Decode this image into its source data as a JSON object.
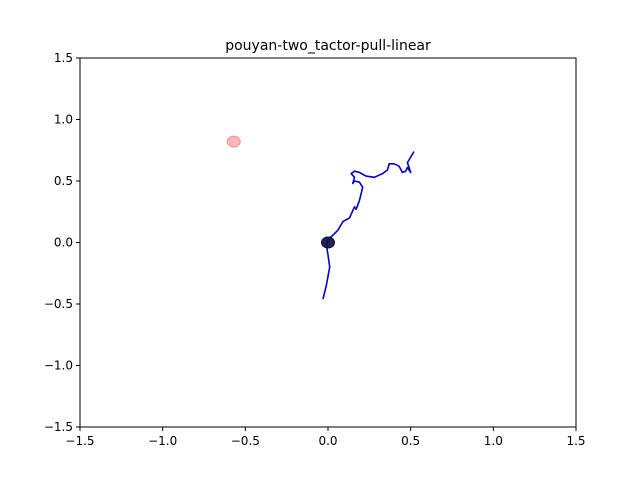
{
  "chart_data": {
    "type": "scatter",
    "title": "pouyan-two_tactor-pull-linear",
    "xlabel": "",
    "ylabel": "",
    "xlim": [
      -1.5,
      1.5
    ],
    "ylim": [
      -1.5,
      1.5
    ],
    "xticks": [
      -1.5,
      -1.0,
      -0.5,
      0.0,
      0.5,
      1.0,
      1.5
    ],
    "yticks": [
      -1.5,
      -1.0,
      -0.5,
      0.0,
      0.5,
      1.0,
      1.5
    ],
    "xtick_labels": [
      "−1.5",
      "−1.0",
      "−0.5",
      "0.0",
      "0.5",
      "1.0",
      "1.5"
    ],
    "ytick_labels": [
      "−1.5",
      "−1.0",
      "−0.5",
      "0.0",
      "0.5",
      "1.0",
      "1.5"
    ],
    "grid": false,
    "trajectory": {
      "color": "#0000cc",
      "points": [
        [
          -0.03,
          -0.46
        ],
        [
          -0.01,
          -0.35
        ],
        [
          0.01,
          -0.2
        ],
        [
          0.0,
          -0.1
        ],
        [
          -0.01,
          -0.02
        ],
        [
          0.0,
          0.02
        ],
        [
          0.03,
          0.06
        ],
        [
          0.06,
          0.1
        ],
        [
          0.09,
          0.17
        ],
        [
          0.13,
          0.2
        ],
        [
          0.16,
          0.29
        ],
        [
          0.17,
          0.27
        ],
        [
          0.19,
          0.34
        ],
        [
          0.21,
          0.45
        ],
        [
          0.19,
          0.49
        ],
        [
          0.16,
          0.5
        ],
        [
          0.15,
          0.48
        ],
        [
          0.16,
          0.53
        ],
        [
          0.14,
          0.56
        ],
        [
          0.16,
          0.58
        ],
        [
          0.19,
          0.57
        ],
        [
          0.23,
          0.54
        ],
        [
          0.28,
          0.53
        ],
        [
          0.33,
          0.56
        ],
        [
          0.36,
          0.59
        ],
        [
          0.37,
          0.64
        ],
        [
          0.4,
          0.64
        ],
        [
          0.43,
          0.62
        ],
        [
          0.45,
          0.57
        ],
        [
          0.47,
          0.58
        ],
        [
          0.48,
          0.61
        ],
        [
          0.5,
          0.57
        ],
        [
          0.48,
          0.65
        ],
        [
          0.52,
          0.74
        ]
      ]
    },
    "markers": [
      {
        "name": "target",
        "x": -0.57,
        "y": 0.82,
        "color": "#f08080",
        "alpha": 0.55
      },
      {
        "name": "origin",
        "x": 0.0,
        "y": 0.0,
        "color": "#0a0a40",
        "alpha": 0.9
      }
    ]
  }
}
